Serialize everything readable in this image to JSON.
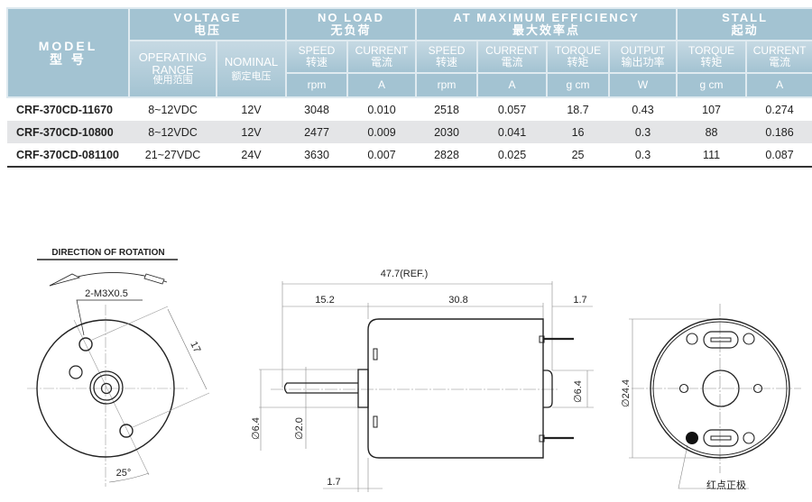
{
  "table": {
    "model": {
      "en": "MODEL",
      "cn": "型 号"
    },
    "voltage": {
      "en": "VOLTAGE",
      "cn": "电压"
    },
    "no_load": {
      "en": "NO LOAD",
      "cn": "无负荷"
    },
    "max_eff": {
      "en": "AT MAXIMUM EFFICIENCY",
      "cn": "最大效率点"
    },
    "stall": {
      "en": "STALL",
      "cn": "起动"
    },
    "sub": [
      {
        "en": "OPERATING RANGE",
        "cn": "使用范围"
      },
      {
        "en": "NOMINAL",
        "cn": "额定电压"
      },
      {
        "en": "SPEED",
        "cn": "转速",
        "unit": "rpm"
      },
      {
        "en": "CURRENT",
        "cn": "電流",
        "unit": "A"
      },
      {
        "en": "SPEED",
        "cn": "转速",
        "unit": "rpm"
      },
      {
        "en": "CURRENT",
        "cn": "電流",
        "unit": "A"
      },
      {
        "en": "TORQUE",
        "cn": "转矩",
        "unit": "g cm"
      },
      {
        "en": "OUTPUT",
        "cn": "输出功率",
        "unit": "W"
      },
      {
        "en": "TORQUE",
        "cn": "转矩",
        "unit": "g cm"
      },
      {
        "en": "CURRENT",
        "cn": "電流",
        "unit": "A"
      }
    ],
    "rows": [
      [
        "CRF-370CD-11670",
        "8~12VDC",
        "12V",
        "3048",
        "0.010",
        "2518",
        "0.057",
        "18.7",
        "0.43",
        "107",
        "0.274"
      ],
      [
        "CRF-370CD-10800",
        "8~12VDC",
        "12V",
        "2477",
        "0.009",
        "2030",
        "0.041",
        "16",
        "0.3",
        "88",
        "0.186"
      ],
      [
        "CRF-370CD-081100",
        "21~27VDC",
        "24V",
        "3630",
        "0.007",
        "2828",
        "0.025",
        "25",
        "0.3",
        "111",
        "0.087"
      ]
    ]
  },
  "colors": {
    "header": "#a3c3d2",
    "row_alt": "#e4e5e7"
  },
  "drawing": {
    "front": {
      "title": "DIRECTION OF ROTATION",
      "thread": "2-M3X0.5",
      "dim_17": "17",
      "angle": "25°"
    },
    "side": {
      "overall": "47.7(REF.)",
      "shaft_len": "15.2",
      "body_len": "30.8",
      "terminal": "1.7",
      "boss_dia": "∅6.4",
      "shaft_dia": "∅2.0",
      "boss_len": "1.7",
      "end_dia": "∅6.4"
    },
    "rear": {
      "dia": "∅24.4",
      "positive_mark": "红点正极"
    }
  }
}
